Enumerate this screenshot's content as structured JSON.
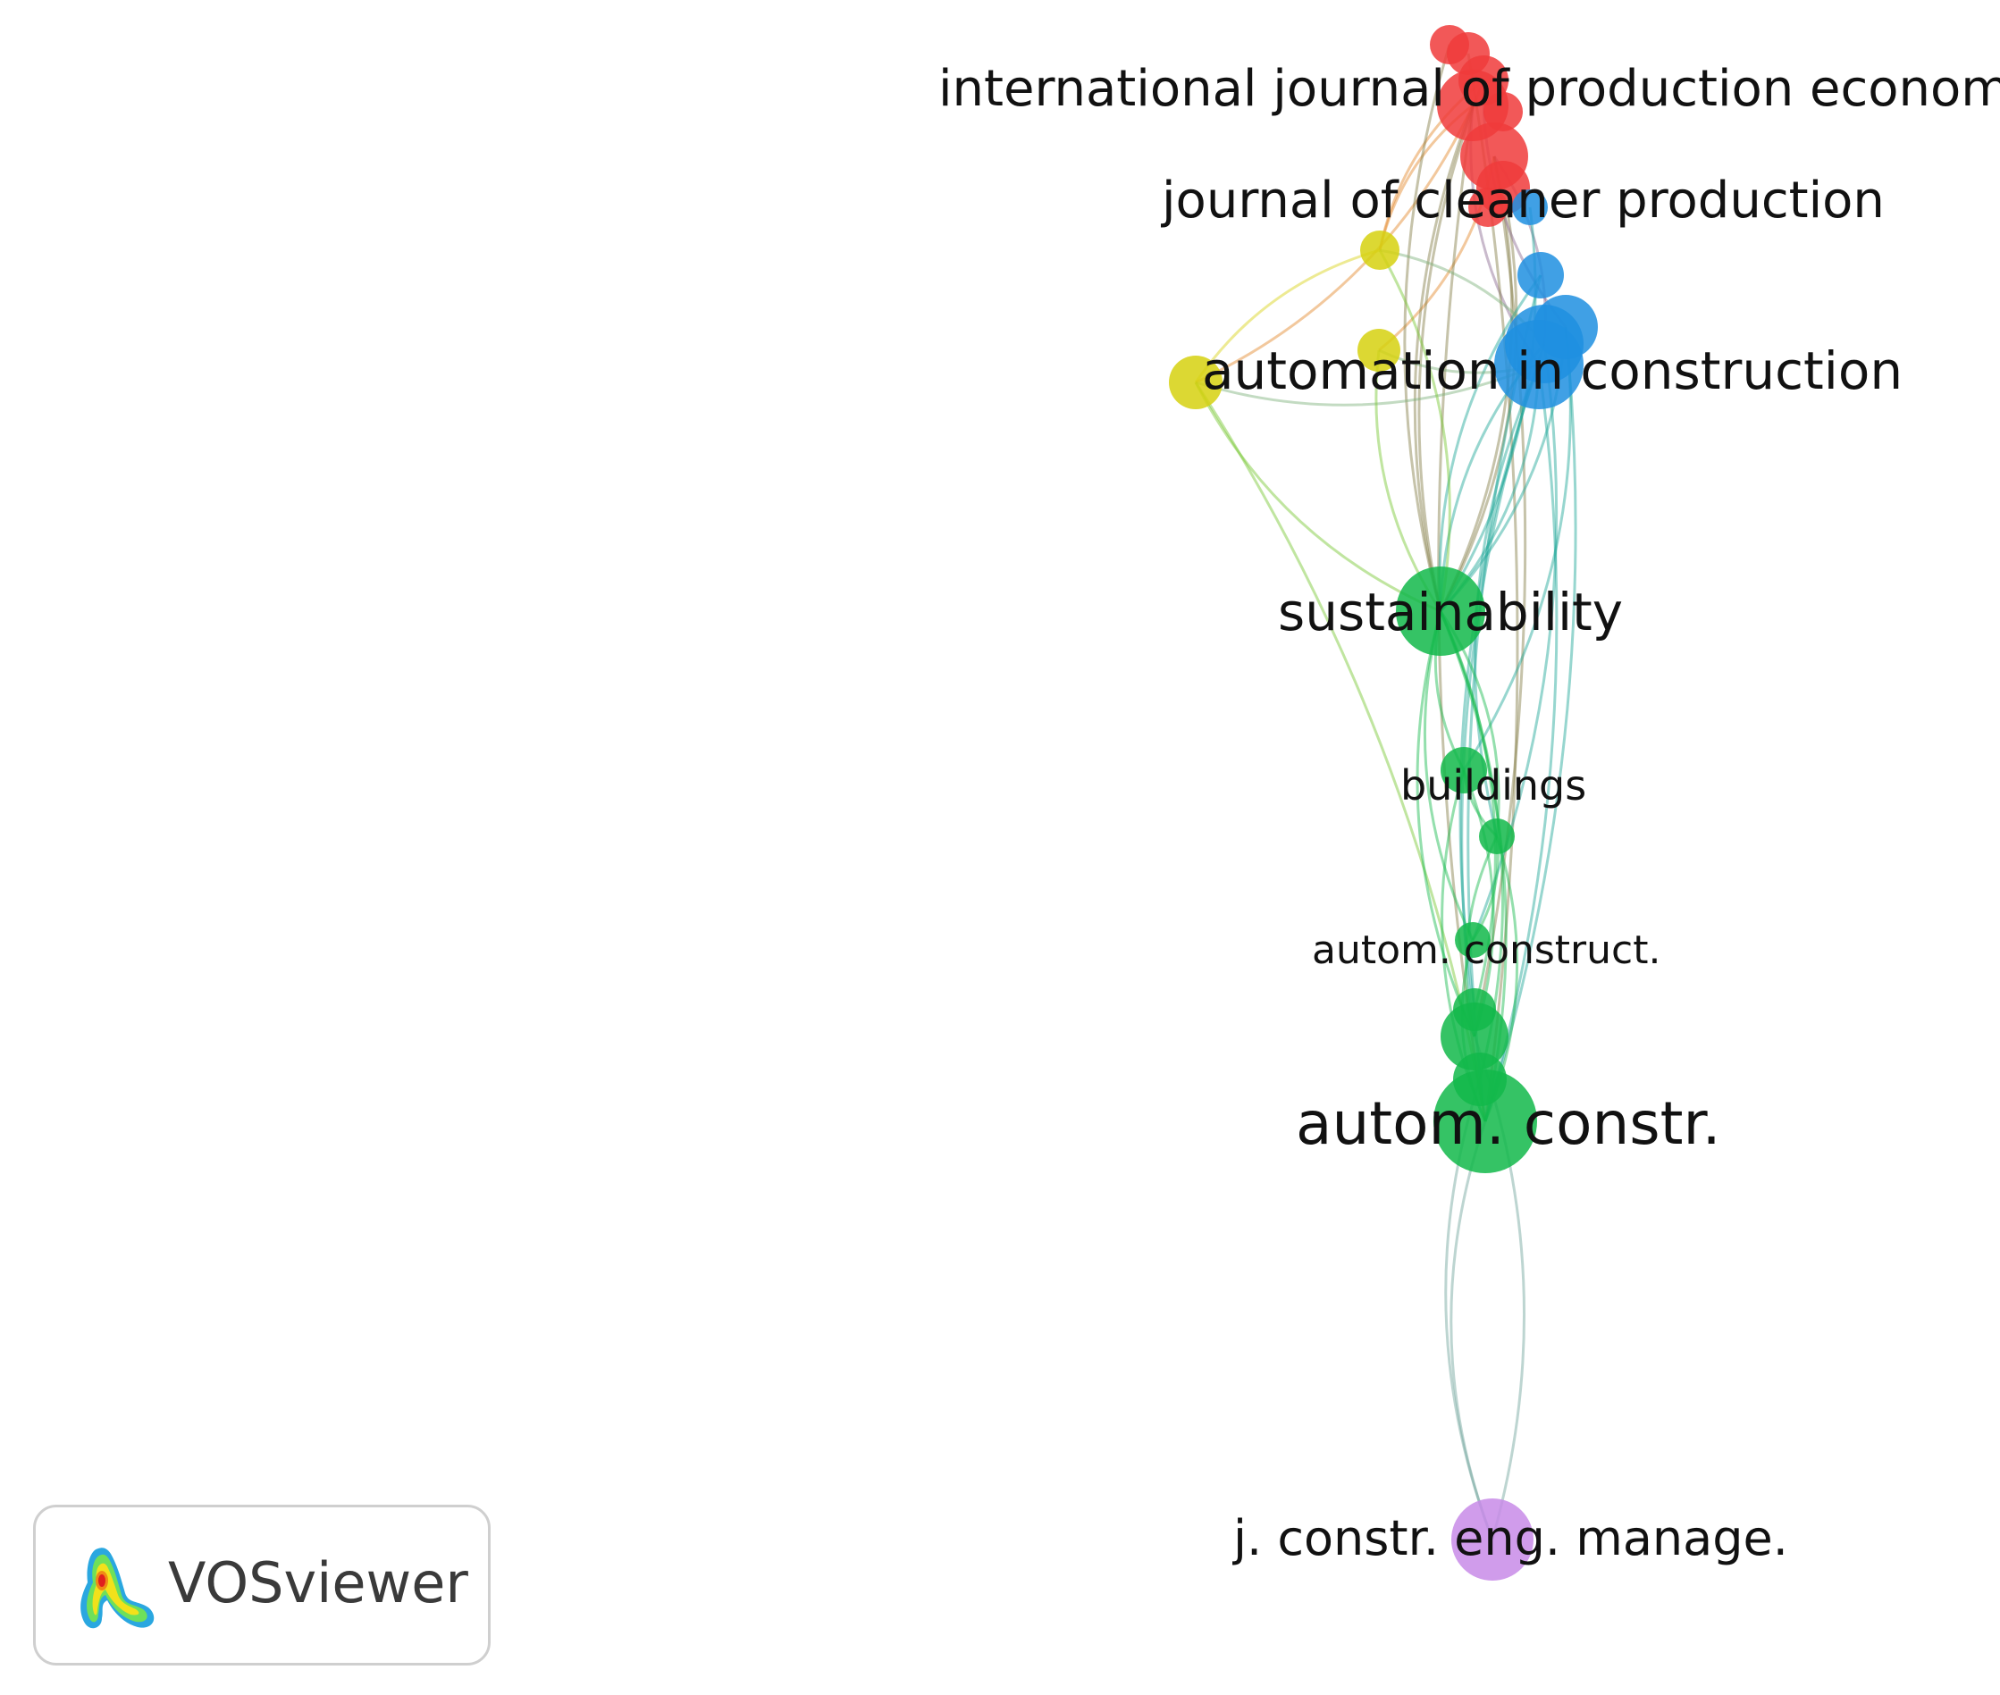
{
  "network": {
    "colors": {
      "red": "#f03b3b",
      "blue": "#1f8fe0",
      "yellow": "#d6d10f",
      "green": "#12b84a",
      "purple": "#c88be8"
    },
    "labels": [
      "international journal of production economics",
      "journal of cleaner production",
      "automation in construction",
      "sustainability",
      "buildings",
      "autom. construct.",
      "autom. constr.",
      "j. constr. eng. manage."
    ]
  },
  "logo": {
    "text": "VOSviewer",
    "icon": "vosviewer-density-icon"
  }
}
